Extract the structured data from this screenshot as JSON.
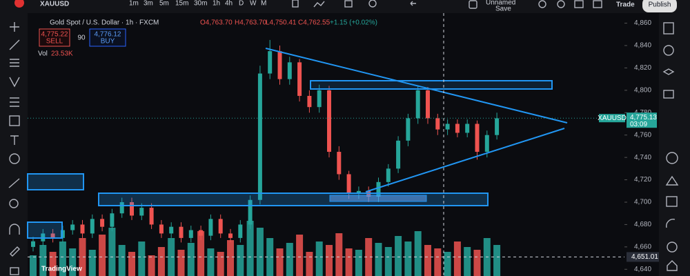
{
  "toolbar": {
    "symbol": "XAUUSD",
    "intervals": [
      "1m",
      "3m",
      "5m",
      "15m",
      "30m",
      "1h",
      "4h",
      "D",
      "W",
      "M"
    ],
    "layout_name": "Unnamed",
    "save": "Save",
    "trade": "Trade",
    "publish": "Publish"
  },
  "legend": {
    "instrument": "Gold Spot / U.S. Dollar · 1h · FXCM",
    "open": "O4,763.70",
    "high": "H4,763.70",
    "low": "L4,750.41",
    "close": "C4,762.55",
    "change": "+1.15 (+0.02%)",
    "sell_price": "4,775.22",
    "sell": "SELL",
    "spread": "90",
    "buy_price": "4,776.12",
    "buy": "BUY",
    "volume_label": "Vol",
    "volume_value": "23.53K"
  },
  "chart_data": {
    "type": "candlestick",
    "open": [
      4660,
      4665,
      4672,
      4668,
      4675,
      4680,
      4672,
      4685,
      4678,
      4690,
      4700,
      4688,
      4695,
      4680,
      4672,
      4678,
      4668,
      4675,
      4670,
      4685,
      4672,
      4668,
      4680,
      4702,
      4815,
      4835,
      4810,
      4825,
      4795,
      4785,
      4800,
      4745,
      4725,
      4708,
      4710,
      4705,
      4718,
      4730,
      4755,
      4775,
      4800,
      4775,
      4765,
      4770,
      4762,
      4770,
      4745,
      4760
    ],
    "high": [
      4669,
      4676,
      4676,
      4679,
      4684,
      4684,
      4689,
      4689,
      4694,
      4704,
      4704,
      4699,
      4699,
      4684,
      4682,
      4682,
      4679,
      4679,
      4689,
      4689,
      4676,
      4684,
      4706,
      4822,
      4845,
      4840,
      4830,
      4828,
      4800,
      4805,
      4804,
      4750,
      4728,
      4714,
      4714,
      4722,
      4734,
      4759,
      4779,
      4804,
      4803,
      4779,
      4774,
      4774,
      4774,
      4773,
      4764,
      4780
    ],
    "low": [
      4656,
      4661,
      4664,
      4664,
      4671,
      4668,
      4668,
      4674,
      4674,
      4686,
      4684,
      4684,
      4676,
      4668,
      4668,
      4664,
      4664,
      4666,
      4666,
      4668,
      4664,
      4664,
      4676,
      4698,
      4810,
      4805,
      4805,
      4790,
      4780,
      4780,
      4740,
      4720,
      4703,
      4703,
      4700,
      4700,
      4714,
      4726,
      4750,
      4770,
      4770,
      4760,
      4760,
      4758,
      4758,
      4738,
      4740,
      4756
    ],
    "close": [
      4665,
      4672,
      4668,
      4675,
      4680,
      4672,
      4685,
      4678,
      4690,
      4700,
      4688,
      4695,
      4680,
      4672,
      4678,
      4668,
      4675,
      4670,
      4685,
      4672,
      4668,
      4680,
      4702,
      4815,
      4835,
      4810,
      4825,
      4795,
      4785,
      4800,
      4745,
      4725,
      4708,
      4710,
      4705,
      4718,
      4730,
      4755,
      4775,
      4800,
      4775,
      4765,
      4770,
      4762,
      4770,
      4745,
      4760,
      4775
    ],
    "volume": [
      30,
      45,
      35,
      50,
      40,
      55,
      38,
      60,
      70,
      45,
      35,
      50,
      30,
      42,
      55,
      38,
      48,
      65,
      40,
      35,
      52,
      45,
      80,
      70,
      55,
      40,
      48,
      60,
      35,
      50,
      45,
      62,
      40,
      38,
      55,
      48,
      42,
      58,
      50,
      65,
      45,
      40,
      35,
      50,
      42,
      38,
      55,
      45
    ],
    "up_color": "#26a69a",
    "down_color": "#ef5350",
    "ylim": [
      4634,
      4869
    ],
    "yticks": [
      {
        "value": 4640,
        "label": "4,640"
      },
      {
        "value": 4660,
        "label": "4,660"
      },
      {
        "value": 4680,
        "label": "4,680"
      },
      {
        "value": 4700,
        "label": "4,700"
      },
      {
        "value": 4720,
        "label": "4,720"
      },
      {
        "value": 4740,
        "label": "4,740"
      },
      {
        "value": 4760,
        "label": "4,760"
      },
      {
        "value": 4780,
        "label": "4,780"
      },
      {
        "value": 4800,
        "label": "4,800"
      },
      {
        "value": 4820,
        "label": "4,820"
      },
      {
        "value": 4840,
        "label": "4,840"
      },
      {
        "value": 4860,
        "label": "4,860"
      }
    ],
    "price_tag": {
      "symbol": "XAUUSD",
      "price": {
        "value": 4775.13,
        "label": "4,775.13"
      },
      "countdown": "03:09"
    },
    "crosshair": {
      "value": 4651.01,
      "label": "4,651.01"
    },
    "watermark": "TradingView"
  }
}
